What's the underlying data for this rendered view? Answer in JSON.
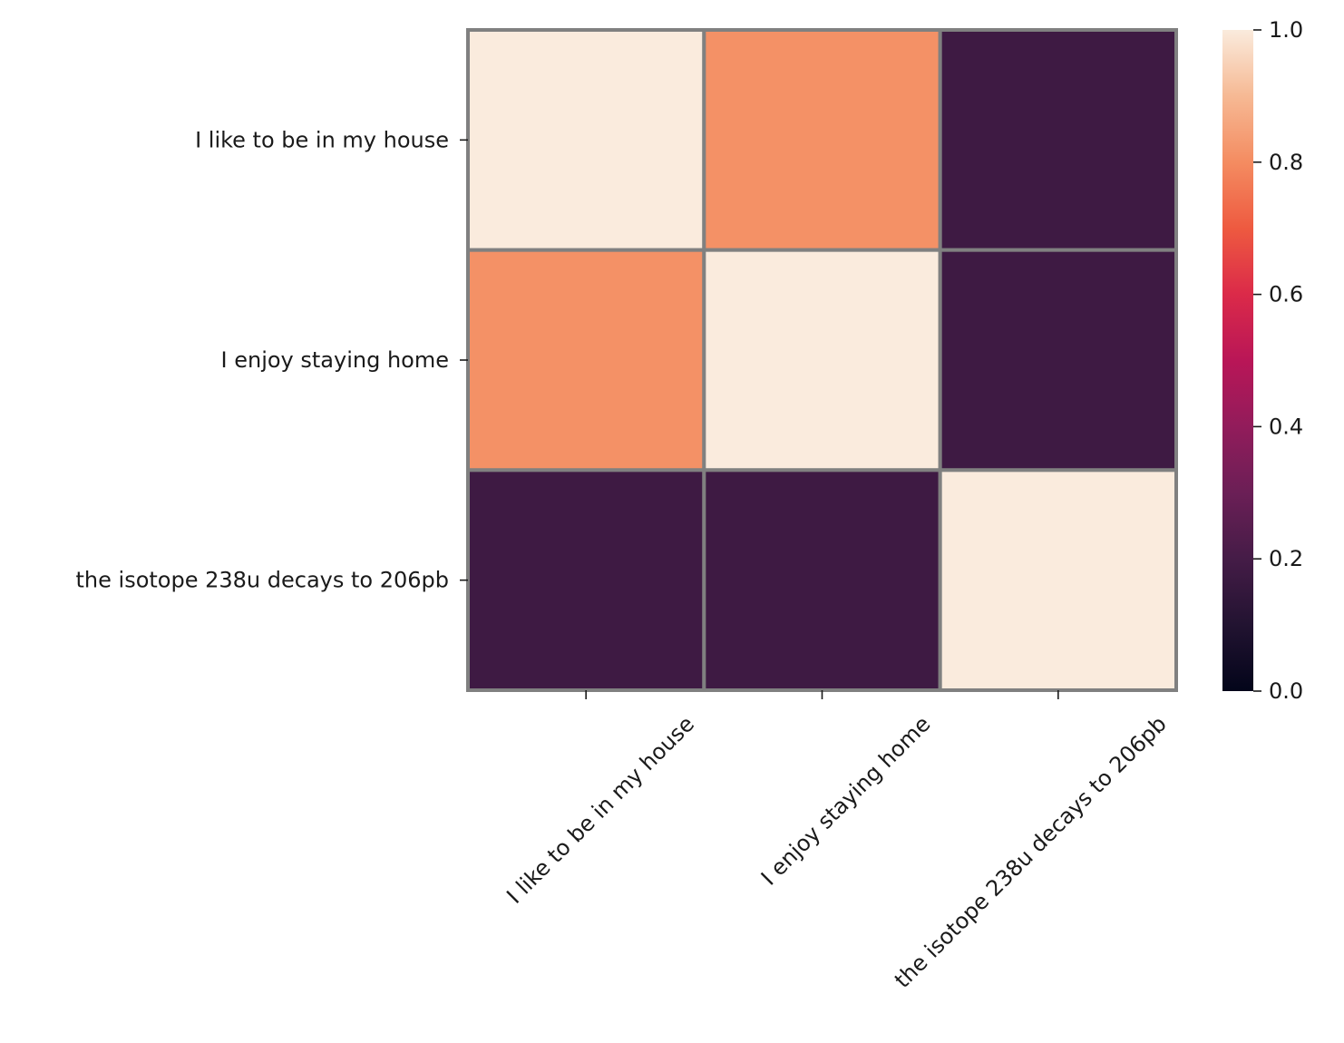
{
  "chart_data": {
    "type": "heatmap",
    "rows": [
      "I like to be in my house",
      "I enjoy staying home",
      "the isotope 238u decays to 206pb"
    ],
    "columns": [
      "I like to be in my house",
      "I enjoy staying home",
      "the isotope 238u decays to 206pb"
    ],
    "values": [
      [
        1.0,
        0.81,
        0.18
      ],
      [
        0.81,
        1.0,
        0.18
      ],
      [
        0.18,
        0.18,
        1.0
      ]
    ],
    "colorbar": {
      "colormap": "rocket",
      "range": [
        0.0,
        1.0
      ],
      "ticks": [
        0.0,
        0.2,
        0.4,
        0.6,
        0.8,
        1.0
      ],
      "tick_labels": [
        "0.0",
        "0.2",
        "0.4",
        "0.6",
        "0.8",
        "1.0"
      ]
    },
    "cell_border_color": "#808080",
    "title": "",
    "xlabel": "",
    "ylabel": ""
  }
}
